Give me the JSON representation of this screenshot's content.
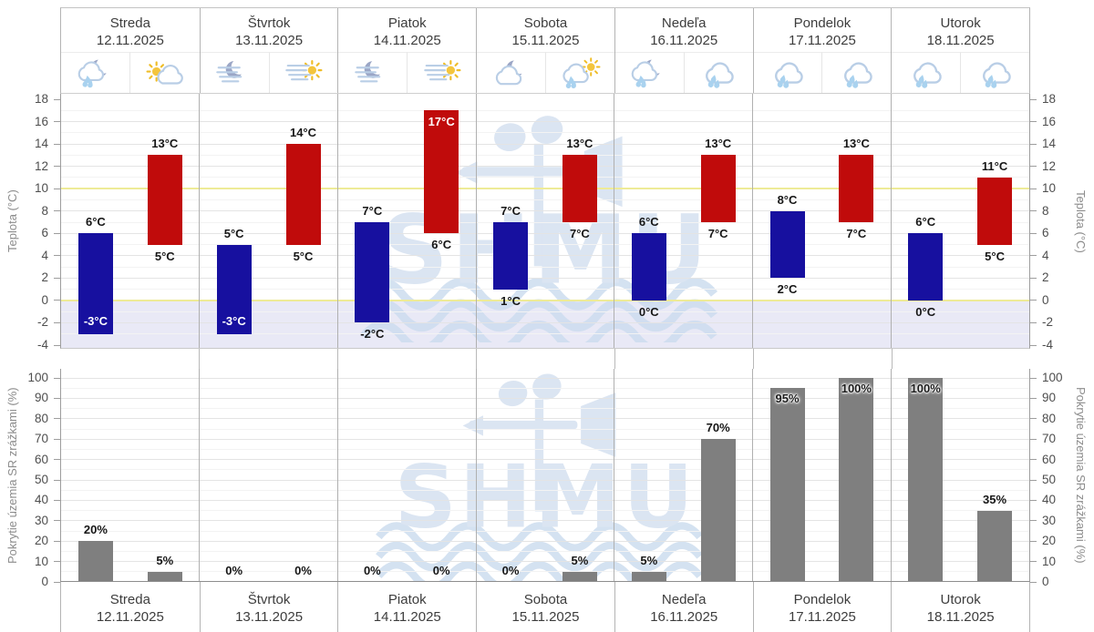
{
  "watermark": {
    "text": "SHMU"
  },
  "days": [
    {
      "name": "Streda",
      "date": "12.11.2025",
      "icons": [
        "rain-moon",
        "sun-cloud"
      ]
    },
    {
      "name": "Štvrtok",
      "date": "13.11.2025",
      "icons": [
        "fog-moon",
        "fog-sun"
      ]
    },
    {
      "name": "Piatok",
      "date": "14.11.2025",
      "icons": [
        "fog-moon",
        "fog-sun"
      ]
    },
    {
      "name": "Sobota",
      "date": "15.11.2025",
      "icons": [
        "cloud-moon",
        "rain-sun"
      ]
    },
    {
      "name": "Nedeľa",
      "date": "16.11.2025",
      "icons": [
        "rain-moon",
        "rain"
      ]
    },
    {
      "name": "Pondelok",
      "date": "17.11.2025",
      "icons": [
        "rain",
        "rain"
      ]
    },
    {
      "name": "Utorok",
      "date": "18.11.2025",
      "icons": [
        "rain",
        "rain"
      ]
    }
  ],
  "chart_data": [
    {
      "type": "bar",
      "subtype": "floating-range",
      "title": "",
      "ylabel": "Teplota (°C)",
      "unit": "°C",
      "ylim": [
        -4,
        18
      ],
      "ytick_step": 2,
      "grid": true,
      "highlight_lines_y": [
        0,
        10
      ],
      "categories": [
        "Streda 12.11.2025",
        "Štvrtok 13.11.2025",
        "Piatok 14.11.2025",
        "Sobota 15.11.2025",
        "Nedeľa 16.11.2025",
        "Pondelok 17.11.2025",
        "Utorok 18.11.2025"
      ],
      "series": [
        {
          "name": "min",
          "color": "#17109f",
          "ranges": [
            [
              -3,
              6
            ],
            [
              -3,
              5
            ],
            [
              -2,
              7
            ],
            [
              1,
              7
            ],
            [
              0,
              6
            ],
            [
              2,
              8
            ],
            [
              0,
              6
            ]
          ]
        },
        {
          "name": "max",
          "color": "#c00b0b",
          "ranges": [
            [
              5,
              13
            ],
            [
              5,
              14
            ],
            [
              6,
              17
            ],
            [
              7,
              13
            ],
            [
              7,
              13
            ],
            [
              7,
              13
            ],
            [
              5,
              11
            ]
          ]
        }
      ]
    },
    {
      "type": "bar",
      "title": "",
      "ylabel": "Pokrytie územia SR zrážkami (%)",
      "unit": "%",
      "ylim": [
        0,
        100
      ],
      "ytick_step": 10,
      "grid": true,
      "categories": [
        "Streda 12.11.2025",
        "Štvrtok 13.11.2025",
        "Piatok 14.11.2025",
        "Sobota 15.11.2025",
        "Nedeľa 16.11.2025",
        "Pondelok 17.11.2025",
        "Utorok 18.11.2025"
      ],
      "series": [
        {
          "name": "period1",
          "color": "#7f7f7f",
          "values": [
            20,
            0,
            0,
            0,
            5,
            95,
            100
          ]
        },
        {
          "name": "period2",
          "color": "#7f7f7f",
          "values": [
            5,
            0,
            0,
            5,
            70,
            100,
            35
          ]
        }
      ]
    }
  ],
  "colors": {
    "min_bar": "#17109f",
    "max_bar": "#c00b0b",
    "precip_bar": "#7f7f7f",
    "highlight_line": "#eeeb97",
    "subzero_bg": "#e9e9f6",
    "watermark": "#d5e1f0"
  }
}
